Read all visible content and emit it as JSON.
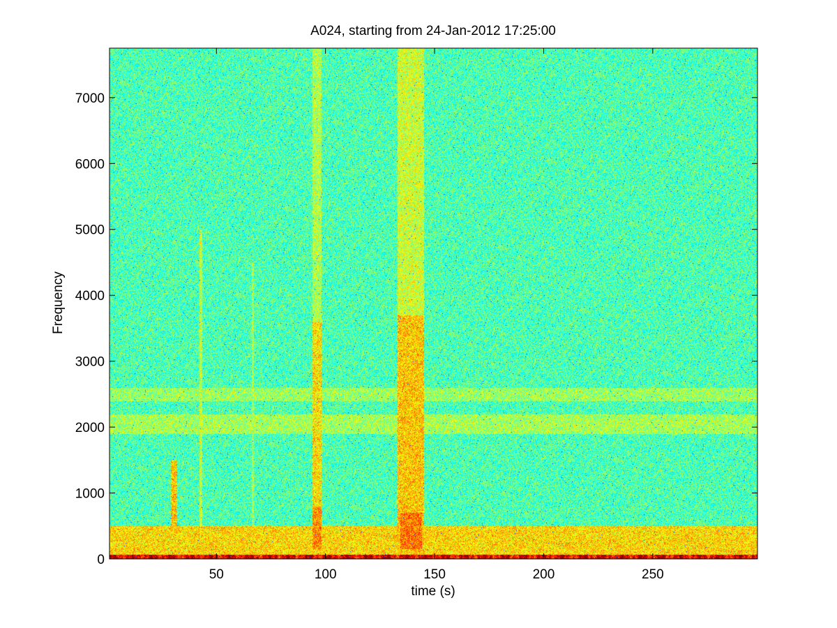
{
  "chart_data": {
    "type": "heatmap",
    "title": "A024, starting from 24-Jan-2012 17:25:00",
    "xlabel": "time (s)",
    "ylabel": "Frequency",
    "xlim": [
      1,
      298
    ],
    "ylim": [
      0,
      7750
    ],
    "x_ticks": [
      50,
      100,
      150,
      200,
      250
    ],
    "y_ticks": [
      0,
      1000,
      2000,
      3000,
      4000,
      5000,
      6000,
      7000
    ],
    "grid": false,
    "legend": "none",
    "colormap": "jet",
    "background_level": 0.45,
    "features": [
      {
        "kind": "vertical-band",
        "t_start": 133,
        "t_end": 145,
        "f_min": 0,
        "f_max": 7750,
        "level": 0.58
      },
      {
        "kind": "vertical-band",
        "t_start": 133,
        "t_end": 145,
        "f_min": 0,
        "f_max": 3700,
        "level": 0.68
      },
      {
        "kind": "vertical-band",
        "t_start": 134,
        "t_end": 144,
        "f_min": 150,
        "f_max": 700,
        "level": 0.76
      },
      {
        "kind": "vertical-band",
        "t_start": 94,
        "t_end": 98,
        "f_min": 0,
        "f_max": 7750,
        "level": 0.55
      },
      {
        "kind": "vertical-band",
        "t_start": 94,
        "t_end": 98,
        "f_min": 0,
        "f_max": 3600,
        "level": 0.65
      },
      {
        "kind": "vertical-band",
        "t_start": 94,
        "t_end": 98,
        "f_min": 150,
        "f_max": 800,
        "level": 0.74
      },
      {
        "kind": "vertical-band",
        "t_start": 29,
        "t_end": 32,
        "f_min": 500,
        "f_max": 1500,
        "level": 0.68
      },
      {
        "kind": "vertical-band",
        "t_start": 42,
        "t_end": 43.5,
        "f_min": 0,
        "f_max": 5000,
        "level": 0.57
      },
      {
        "kind": "vertical-band",
        "t_start": 66,
        "t_end": 67,
        "f_min": 0,
        "f_max": 4500,
        "level": 0.55
      },
      {
        "kind": "horizontal-band",
        "f_min": 0,
        "f_max": 500,
        "level": 0.66
      },
      {
        "kind": "horizontal-band",
        "f_min": 1900,
        "f_max": 2200,
        "level": 0.54
      },
      {
        "kind": "horizontal-band",
        "f_min": 2400,
        "f_max": 2600,
        "level": 0.53
      },
      {
        "kind": "bottom-strip",
        "f_min": 0,
        "f_max": 70,
        "level": 0.9
      }
    ]
  }
}
